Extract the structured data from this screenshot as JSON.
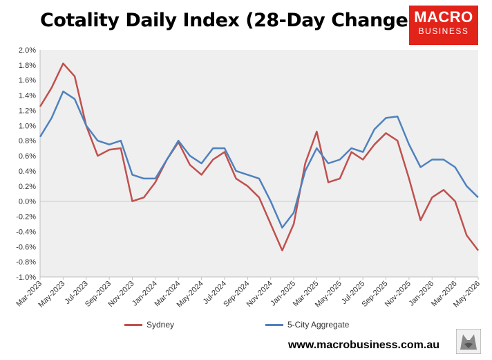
{
  "header": {
    "title": "Cotality Daily Index (28-Day Change)"
  },
  "logo": {
    "line1": "MACRO",
    "line2": "BUSINESS",
    "color": "#e2231a"
  },
  "footer": {
    "url": "www.macrobusiness.com.au"
  },
  "chart_data": {
    "type": "line",
    "title": "Cotality Daily Index (28-Day Change)",
    "xlabel": "",
    "ylabel": "",
    "ylim": [
      -1.0,
      2.0
    ],
    "y_ticks": [
      "2.0%",
      "1.8%",
      "1.6%",
      "1.4%",
      "1.2%",
      "1.0%",
      "0.8%",
      "0.6%",
      "0.4%",
      "0.2%",
      "0.0%",
      "-0.2%",
      "-0.4%",
      "-0.6%",
      "-0.8%",
      "-1.0%"
    ],
    "x_ticks": [
      "Mar-2023",
      "May-2023",
      "Jul-2023",
      "Sep-2023",
      "Nov-2023",
      "Jan-2024",
      "Mar-2024",
      "May-2024",
      "Jul-2024",
      "Sep-2024",
      "Nov-2024",
      "Jan-2025",
      "Mar-2025",
      "May-2025",
      "Jul-2025",
      "Sep-2025",
      "Nov-2025",
      "Jan-2026",
      "Mar-2026",
      "May-2026"
    ],
    "x_range": [
      "2023-03",
      "2026-05"
    ],
    "grid": false,
    "legend_position": "bottom",
    "series": [
      {
        "name": "Sydney",
        "color": "#c0504d",
        "points": [
          [
            "2023-03",
            1.25
          ],
          [
            "2023-04",
            1.5
          ],
          [
            "2023-05",
            1.82
          ],
          [
            "2023-06",
            1.65
          ],
          [
            "2023-07",
            1.0
          ],
          [
            "2023-08",
            0.6
          ],
          [
            "2023-09",
            0.68
          ],
          [
            "2023-10",
            0.7
          ],
          [
            "2023-11",
            0.0
          ],
          [
            "2023-12",
            0.05
          ],
          [
            "2024-01",
            0.25
          ],
          [
            "2024-02",
            0.55
          ],
          [
            "2024-03",
            0.78
          ],
          [
            "2024-04",
            0.48
          ],
          [
            "2024-05",
            0.35
          ],
          [
            "2024-06",
            0.55
          ],
          [
            "2024-07",
            0.65
          ],
          [
            "2024-08",
            0.3
          ],
          [
            "2024-09",
            0.2
          ],
          [
            "2024-10",
            0.05
          ],
          [
            "2024-11",
            -0.3
          ],
          [
            "2024-12",
            -0.65
          ],
          [
            "2025-01",
            -0.3
          ],
          [
            "2025-02",
            0.5
          ],
          [
            "2025-03",
            0.92
          ],
          [
            "2025-04",
            0.25
          ],
          [
            "2025-05",
            0.3
          ],
          [
            "2025-06",
            0.65
          ],
          [
            "2025-07",
            0.55
          ],
          [
            "2025-08",
            0.75
          ],
          [
            "2025-09",
            0.9
          ],
          [
            "2025-10",
            0.8
          ],
          [
            "2025-11",
            0.3
          ],
          [
            "2025-12",
            -0.25
          ],
          [
            "2026-01",
            0.05
          ],
          [
            "2026-02",
            0.15
          ],
          [
            "2026-03",
            0.0
          ],
          [
            "2026-04",
            -0.45
          ],
          [
            "2026-05",
            -0.65
          ]
        ]
      },
      {
        "name": "5-City Aggregate",
        "color": "#4f81bd",
        "points": [
          [
            "2023-03",
            0.85
          ],
          [
            "2023-04",
            1.1
          ],
          [
            "2023-05",
            1.45
          ],
          [
            "2023-06",
            1.35
          ],
          [
            "2023-07",
            1.0
          ],
          [
            "2023-08",
            0.8
          ],
          [
            "2023-09",
            0.75
          ],
          [
            "2023-10",
            0.8
          ],
          [
            "2023-11",
            0.35
          ],
          [
            "2023-12",
            0.3
          ],
          [
            "2024-01",
            0.3
          ],
          [
            "2024-02",
            0.55
          ],
          [
            "2024-03",
            0.8
          ],
          [
            "2024-04",
            0.6
          ],
          [
            "2024-05",
            0.5
          ],
          [
            "2024-06",
            0.7
          ],
          [
            "2024-07",
            0.7
          ],
          [
            "2024-08",
            0.4
          ],
          [
            "2024-09",
            0.35
          ],
          [
            "2024-10",
            0.3
          ],
          [
            "2024-11",
            0.0
          ],
          [
            "2024-12",
            -0.35
          ],
          [
            "2025-01",
            -0.15
          ],
          [
            "2025-02",
            0.4
          ],
          [
            "2025-03",
            0.7
          ],
          [
            "2025-04",
            0.5
          ],
          [
            "2025-05",
            0.55
          ],
          [
            "2025-06",
            0.7
          ],
          [
            "2025-07",
            0.65
          ],
          [
            "2025-08",
            0.95
          ],
          [
            "2025-09",
            1.1
          ],
          [
            "2025-10",
            1.12
          ],
          [
            "2025-11",
            0.75
          ],
          [
            "2025-12",
            0.45
          ],
          [
            "2026-01",
            0.55
          ],
          [
            "2026-02",
            0.55
          ],
          [
            "2026-03",
            0.45
          ],
          [
            "2026-04",
            0.2
          ],
          [
            "2026-05",
            0.05
          ]
        ]
      }
    ]
  }
}
